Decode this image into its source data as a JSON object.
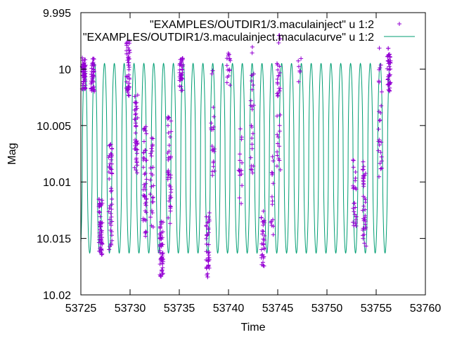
{
  "chart_data": {
    "type": "scatter",
    "xlabel": "Time",
    "ylabel": "Mag",
    "xlim": [
      53725,
      53760
    ],
    "ylim": [
      10.02,
      9.995
    ],
    "y_inverted": true,
    "grid": false,
    "legend_position": "top-right",
    "x_ticks": [
      "53725",
      "53730",
      "53735",
      "53740",
      "53745",
      "53750",
      "53755",
      "53760"
    ],
    "x_tick_values": [
      53725,
      53730,
      53735,
      53740,
      53745,
      53750,
      53755,
      53760
    ],
    "y_ticks": [
      "9.995",
      "10",
      "10.005",
      "10.01",
      "10.015",
      "10.02"
    ],
    "y_tick_values": [
      9.995,
      10.0,
      10.005,
      10.01,
      10.015,
      10.02
    ],
    "series": [
      {
        "name": "\"EXAMPLES/OUTDIR1/3.maculainject\" u 1:2",
        "style": "points",
        "marker": "plus",
        "color": "#9400d3",
        "clusters": [
          {
            "x": 53725.3,
            "center": 10.0005,
            "spread": 0.0015,
            "count": 55
          },
          {
            "x": 53726.2,
            "center": 10.0005,
            "spread": 0.0015,
            "count": 40
          },
          {
            "x": 53727.0,
            "center": 10.014,
            "spread": 0.0025,
            "count": 55
          },
          {
            "x": 53728.0,
            "center": 10.0115,
            "spread": 0.005,
            "count": 45
          },
          {
            "x": 53729.8,
            "center": 10.0,
            "spread": 0.0025,
            "count": 45
          },
          {
            "x": 53730.6,
            "center": 10.006,
            "spread": 0.004,
            "count": 40
          },
          {
            "x": 53731.5,
            "center": 10.01,
            "spread": 0.005,
            "count": 45
          },
          {
            "x": 53732.2,
            "center": 10.01,
            "spread": 0.004,
            "count": 25
          },
          {
            "x": 53733.2,
            "center": 10.016,
            "spread": 0.0025,
            "count": 55
          },
          {
            "x": 53734.0,
            "center": 10.009,
            "spread": 0.005,
            "count": 40
          },
          {
            "x": 53735.2,
            "center": 10.0005,
            "spread": 0.0015,
            "count": 35
          },
          {
            "x": 53737.9,
            "center": 10.0155,
            "spread": 0.003,
            "count": 40
          },
          {
            "x": 53738.4,
            "center": 10.005,
            "spread": 0.005,
            "count": 20
          },
          {
            "x": 53740.0,
            "center": 10.0,
            "spread": 0.0015,
            "count": 15
          },
          {
            "x": 53741.2,
            "center": 10.009,
            "spread": 0.004,
            "count": 15
          },
          {
            "x": 53742.4,
            "center": 10.004,
            "spread": 0.006,
            "count": 25
          },
          {
            "x": 53743.5,
            "center": 10.015,
            "spread": 0.0025,
            "count": 30
          },
          {
            "x": 53744.4,
            "center": 10.011,
            "spread": 0.004,
            "count": 15
          },
          {
            "x": 53745.1,
            "center": 10.003,
            "spread": 0.006,
            "count": 35
          },
          {
            "x": 53747.2,
            "center": 10.0,
            "spread": 0.0012,
            "count": 6
          },
          {
            "x": 53752.8,
            "center": 10.011,
            "spread": 0.003,
            "count": 25
          },
          {
            "x": 53753.8,
            "center": 10.012,
            "spread": 0.004,
            "count": 40
          },
          {
            "x": 53755.4,
            "center": 10.004,
            "spread": 0.006,
            "count": 25
          },
          {
            "x": 53756.3,
            "center": 10.0,
            "spread": 0.002,
            "count": 45
          }
        ]
      },
      {
        "name": "\"EXAMPLES/OUTDIR1/3.maculainject.maculacurve\" u 1:2",
        "style": "line",
        "color": "#009e73",
        "x_range": [
          53725,
          53756.4
        ],
        "period": 1.0,
        "phase": 0.4,
        "min_mag": 9.9995,
        "max_mag": 10.0163
      }
    ]
  }
}
